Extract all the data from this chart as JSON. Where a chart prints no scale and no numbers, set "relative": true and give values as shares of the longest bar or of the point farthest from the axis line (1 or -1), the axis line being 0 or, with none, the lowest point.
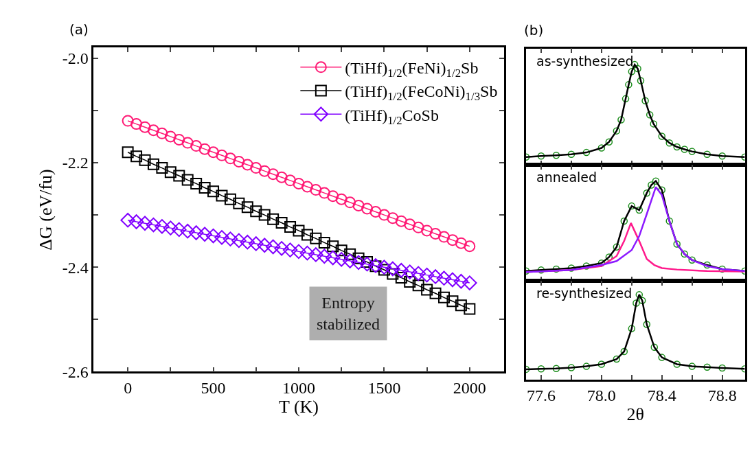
{
  "chart_data": [
    {
      "type": "line",
      "title": "(a)",
      "xlabel": "T (K)",
      "ylabel": "ΔG (eV/fu)",
      "xlim": [
        -200,
        2200
      ],
      "ylim": [
        -2.6,
        -1.98
      ],
      "xticks": [
        0,
        {
          "value": 250,
          "label": null
        },
        500,
        {
          "value": 750,
          "label": null
        },
        1000,
        {
          "value": 1250,
          "label": null
        },
        1500,
        {
          "value": 1750,
          "label": null
        },
        2000
      ],
      "yticks": [
        -2.6,
        {
          "value": -2.5,
          "label": null
        },
        -2.4,
        {
          "value": -2.3,
          "label": null
        },
        -2.2,
        {
          "value": -2.1,
          "label": null
        },
        {
          "value": -2.0,
          "label": "-2.0"
        }
      ],
      "legend": "top right",
      "x": [
        0,
        50,
        100,
        150,
        200,
        250,
        300,
        350,
        400,
        450,
        500,
        550,
        600,
        650,
        700,
        750,
        800,
        850,
        900,
        950,
        1000,
        1050,
        1100,
        1150,
        1200,
        1250,
        1300,
        1350,
        1400,
        1450,
        1500,
        1550,
        1600,
        1650,
        1700,
        1750,
        1800,
        1850,
        1900,
        1950,
        2000
      ],
      "series": [
        {
          "name": "(TiHf)$_{1/2}$(FeNi)$_{1/2}$Sb",
          "color": "#ff1a75",
          "marker": "circle",
          "values": [
            -2.12,
            -2.126,
            -2.132,
            -2.138,
            -2.144,
            -2.15,
            -2.156,
            -2.162,
            -2.168,
            -2.174,
            -2.18,
            -2.186,
            -2.192,
            -2.198,
            -2.204,
            -2.21,
            -2.216,
            -2.222,
            -2.228,
            -2.234,
            -2.24,
            -2.246,
            -2.252,
            -2.258,
            -2.264,
            -2.27,
            -2.276,
            -2.282,
            -2.288,
            -2.294,
            -2.3,
            -2.306,
            -2.312,
            -2.318,
            -2.324,
            -2.33,
            -2.336,
            -2.342,
            -2.348,
            -2.354,
            -2.36
          ]
        },
        {
          "name": "(TiHf)$_{1/2}$(FeCoNi)$_{1/3}$Sb",
          "color": "#000000",
          "marker": "square",
          "values": [
            -2.18,
            -2.188,
            -2.195,
            -2.203,
            -2.21,
            -2.218,
            -2.225,
            -2.233,
            -2.24,
            -2.248,
            -2.255,
            -2.263,
            -2.27,
            -2.278,
            -2.285,
            -2.293,
            -2.3,
            -2.308,
            -2.315,
            -2.323,
            -2.33,
            -2.338,
            -2.345,
            -2.353,
            -2.36,
            -2.368,
            -2.375,
            -2.383,
            -2.39,
            -2.398,
            -2.405,
            -2.413,
            -2.42,
            -2.428,
            -2.435,
            -2.443,
            -2.45,
            -2.458,
            -2.465,
            -2.473,
            -2.48
          ]
        },
        {
          "name": "(TiHf)$_{1/2}$CoSb",
          "color": "#8000ff",
          "marker": "diamond",
          "values": [
            -2.31,
            -2.313,
            -2.316,
            -2.319,
            -2.322,
            -2.325,
            -2.328,
            -2.331,
            -2.334,
            -2.337,
            -2.34,
            -2.343,
            -2.346,
            -2.349,
            -2.352,
            -2.355,
            -2.358,
            -2.361,
            -2.364,
            -2.367,
            -2.37,
            -2.373,
            -2.376,
            -2.379,
            -2.382,
            -2.385,
            -2.388,
            -2.391,
            -2.394,
            -2.397,
            -2.4,
            -2.403,
            -2.406,
            -2.409,
            -2.412,
            -2.415,
            -2.418,
            -2.421,
            -2.424,
            -2.427,
            -2.43
          ]
        }
      ],
      "annotations": [
        "Entropy stabilized"
      ]
    },
    {
      "type": "line",
      "title": "(b)",
      "relative": true,
      "tick_labels": false,
      "xlim": [
        77.5,
        78.95
      ],
      "xticks": [
        {
          "value": 77.6,
          "label": null
        },
        {
          "value": 77.8,
          "label": null
        },
        {
          "value": 78.0,
          "label": null
        },
        {
          "value": 78.2,
          "label": null
        },
        {
          "value": 78.4,
          "label": null
        },
        {
          "value": 78.6,
          "label": null
        },
        {
          "value": 78.8,
          "label": null
        }
      ],
      "annotations": [
        "as-synthesized"
      ],
      "series": [
        {
          "type": "scatter",
          "color": "#1a8c1a",
          "marker": "circle",
          "x": [
            77.5,
            77.6,
            77.7,
            77.8,
            77.9,
            78.0,
            78.05,
            78.1,
            78.13,
            78.16,
            78.18,
            78.2,
            78.22,
            78.24,
            78.26,
            78.29,
            78.32,
            78.345,
            78.4,
            78.45,
            78.5,
            78.55,
            78.6,
            78.7,
            78.8,
            78.95
          ],
          "values": [
            0.08,
            0.09,
            0.097,
            0.107,
            0.125,
            0.17,
            0.23,
            0.34,
            0.45,
            0.66,
            0.8,
            0.93,
            1.0,
            0.96,
            0.84,
            0.64,
            0.5,
            0.41,
            0.286,
            0.22,
            0.18,
            0.156,
            0.135,
            0.107,
            0.09,
            0.08
          ]
        },
        {
          "type": "line",
          "color": "#000000",
          "x": [
            77.5,
            77.6,
            77.7,
            77.8,
            77.9,
            78.0,
            78.05,
            78.1,
            78.13,
            78.16,
            78.18,
            78.2,
            78.22,
            78.24,
            78.26,
            78.29,
            78.32,
            78.345,
            78.4,
            78.45,
            78.5,
            78.55,
            78.6,
            78.7,
            78.8,
            78.95
          ],
          "values": [
            0.08,
            0.09,
            0.097,
            0.107,
            0.125,
            0.17,
            0.23,
            0.34,
            0.45,
            0.66,
            0.8,
            0.93,
            1.0,
            0.96,
            0.84,
            0.64,
            0.5,
            0.41,
            0.286,
            0.22,
            0.18,
            0.156,
            0.135,
            0.107,
            0.09,
            0.08
          ]
        }
      ]
    },
    {
      "type": "line",
      "relative": true,
      "tick_labels": false,
      "xlim": [
        77.5,
        78.95
      ],
      "xticks": [
        {
          "value": 77.6,
          "label": null
        },
        {
          "value": 77.8,
          "label": null
        },
        {
          "value": 78.0,
          "label": null
        },
        {
          "value": 78.2,
          "label": null
        },
        {
          "value": 78.4,
          "label": null
        },
        {
          "value": 78.6,
          "label": null
        },
        {
          "value": 78.8,
          "label": null
        }
      ],
      "annotations": [
        "annealed"
      ],
      "series": [
        {
          "type": "scatter",
          "color": "#1a8c1a",
          "marker": "circle",
          "x": [
            77.5,
            77.6,
            77.7,
            77.8,
            77.9,
            78.0,
            78.05,
            78.1,
            78.15,
            78.2,
            78.25,
            78.3,
            78.33,
            78.36,
            78.4,
            78.45,
            78.5,
            78.55,
            78.6,
            78.7,
            78.8,
            78.95
          ],
          "values": [
            0.1,
            0.11,
            0.12,
            0.13,
            0.15,
            0.18,
            0.24,
            0.34,
            0.6,
            0.75,
            0.71,
            0.88,
            0.96,
            1.0,
            0.91,
            0.6,
            0.37,
            0.27,
            0.21,
            0.16,
            0.12,
            0.1
          ]
        },
        {
          "type": "line",
          "color": "#000000",
          "x": [
            77.5,
            77.6,
            77.7,
            77.8,
            77.9,
            78.0,
            78.05,
            78.1,
            78.15,
            78.2,
            78.25,
            78.3,
            78.33,
            78.36,
            78.4,
            78.45,
            78.5,
            78.55,
            78.6,
            78.7,
            78.8,
            78.95
          ],
          "values": [
            0.1,
            0.11,
            0.12,
            0.13,
            0.15,
            0.18,
            0.24,
            0.34,
            0.6,
            0.75,
            0.71,
            0.88,
            0.96,
            1.0,
            0.91,
            0.6,
            0.37,
            0.27,
            0.21,
            0.16,
            0.12,
            0.1
          ]
        },
        {
          "type": "line",
          "color": "#ff1a8c",
          "x": [
            77.5,
            77.8,
            78.0,
            78.1,
            78.15,
            78.195,
            78.25,
            78.3,
            78.35,
            78.4,
            78.5,
            78.7,
            78.95
          ],
          "values": [
            0.09,
            0.11,
            0.15,
            0.25,
            0.4,
            0.58,
            0.4,
            0.22,
            0.16,
            0.13,
            0.115,
            0.1,
            0.095
          ]
        },
        {
          "type": "line",
          "color": "#8c1aff",
          "x": [
            77.5,
            77.8,
            78.0,
            78.1,
            78.2,
            78.25,
            78.3,
            78.36,
            78.4,
            78.45,
            78.5,
            78.55,
            78.6,
            78.7,
            78.8,
            78.95
          ],
          "values": [
            0.09,
            0.11,
            0.16,
            0.2,
            0.31,
            0.45,
            0.67,
            0.94,
            0.86,
            0.6,
            0.37,
            0.27,
            0.21,
            0.15,
            0.12,
            0.1
          ]
        }
      ]
    },
    {
      "type": "line",
      "relative": true,
      "tick_labels": "x",
      "xlabel": "2θ",
      "xlim": [
        77.5,
        78.95
      ],
      "xticks": [
        77.6,
        {
          "value": 77.8,
          "label": null
        },
        {
          "value": 78.0,
          "label": "78.0"
        },
        {
          "value": 78.2,
          "label": null
        },
        78.4,
        {
          "value": 78.6,
          "label": null
        },
        78.8
      ],
      "annotations": [
        "re-synthesized"
      ],
      "series": [
        {
          "type": "scatter",
          "color": "#1a8c1a",
          "marker": "circle",
          "x": [
            77.5,
            77.6,
            77.7,
            77.8,
            77.9,
            78.0,
            78.1,
            78.15,
            78.2,
            78.23,
            78.25,
            78.27,
            78.3,
            78.35,
            78.4,
            78.5,
            78.6,
            78.7,
            78.8,
            78.95
          ],
          "values": [
            0.12,
            0.125,
            0.13,
            0.14,
            0.155,
            0.18,
            0.24,
            0.33,
            0.6,
            0.9,
            1.0,
            0.93,
            0.65,
            0.38,
            0.26,
            0.18,
            0.155,
            0.145,
            0.135,
            0.125
          ]
        },
        {
          "type": "line",
          "color": "#000000",
          "x": [
            77.5,
            77.6,
            77.7,
            77.8,
            77.9,
            78.0,
            78.1,
            78.15,
            78.2,
            78.23,
            78.25,
            78.27,
            78.3,
            78.35,
            78.4,
            78.5,
            78.6,
            78.7,
            78.8,
            78.95
          ],
          "values": [
            0.12,
            0.125,
            0.13,
            0.14,
            0.155,
            0.18,
            0.24,
            0.33,
            0.6,
            0.9,
            1.0,
            0.93,
            0.65,
            0.38,
            0.26,
            0.18,
            0.155,
            0.145,
            0.135,
            0.125
          ]
        }
      ]
    }
  ]
}
